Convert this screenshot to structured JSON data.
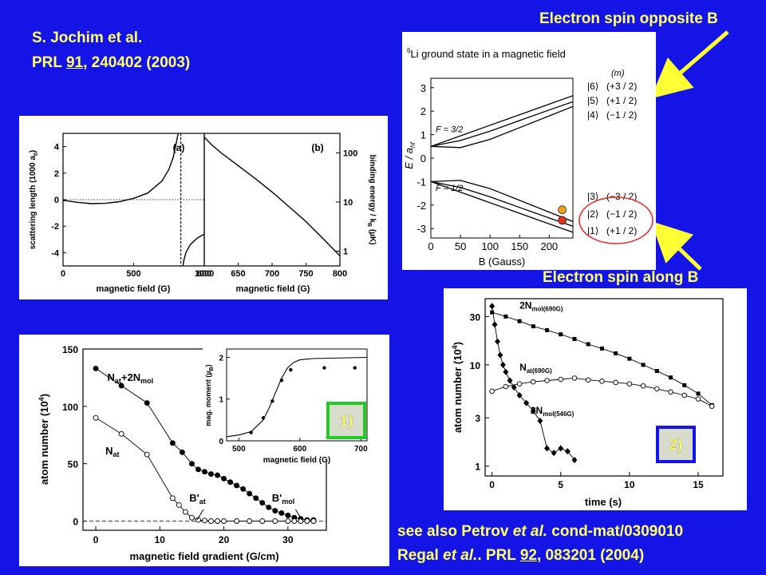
{
  "slide": {
    "citation_top": {
      "authors": "S. Jochim et al.",
      "journal": "PRL",
      "volume": "91",
      "rest": ", 240402 (2003)"
    },
    "label_opposite": "Electron spin opposite B",
    "label_along": "Electron spin  along B",
    "see_also": {
      "prefix": "see also Petrov ",
      "etal": "et al.",
      "suffix": " cond-mat/0309010"
    },
    "regal": {
      "authors": "Regal ",
      "etal": "et al.",
      "journal": ". PRL ",
      "volume": "92",
      "rest": ", 083201 (2004)"
    },
    "box1_label": "1)",
    "box2_label": "2)",
    "colors": {
      "background": "#1414e6",
      "text": "#ffff66",
      "arrow": "#ffff33",
      "box1": "#22cc22",
      "box2": "#1414e6",
      "circle": "#e03030"
    }
  },
  "chart_data": [
    {
      "id": "panel-a",
      "type": "line",
      "panel_label": "(a)",
      "xlabel": "magnetic field (G)",
      "ylabel": "scattering length (1000 a",
      "ylabel_sub": "0",
      "ylabel_close": ")",
      "xlim": [
        0,
        1000
      ],
      "ylim": [
        -5,
        5
      ],
      "xticks": [
        0,
        500,
        1000
      ],
      "yticks": [
        -4,
        -2,
        0,
        2,
        4
      ],
      "resonance_x": 834,
      "series": [
        {
          "x": [
            0,
            100,
            200,
            300,
            400,
            500,
            600,
            700,
            750,
            780,
            800,
            815,
            825
          ],
          "y": [
            -0.05,
            -0.2,
            -0.3,
            -0.28,
            -0.15,
            0.1,
            0.5,
            1.4,
            2.3,
            3.2,
            4.2,
            5.0,
            5.5
          ]
        },
        {
          "x": [
            843,
            855,
            870,
            900,
            950,
            1000
          ],
          "y": [
            -5.5,
            -4.6,
            -4.0,
            -3.4,
            -2.9,
            -2.6
          ]
        }
      ]
    },
    {
      "id": "panel-b",
      "type": "line",
      "panel_label": "(b)",
      "xlabel": "magnetic field (G)",
      "ylabel": "binding energy / k",
      "ylabel_sub": "B",
      "ylabel_close": " (µK)",
      "xlim": [
        600,
        800
      ],
      "ylim_log": [
        0.5,
        250
      ],
      "yscale": "log",
      "xticks": [
        600,
        650,
        700,
        750,
        800
      ],
      "yticks": [
        1,
        10,
        100
      ],
      "series": [
        {
          "x": [
            600,
            610,
            625,
            650,
            675,
            700,
            725,
            750,
            775,
            800
          ],
          "y": [
            210,
            150,
            100,
            55,
            30,
            16,
            8,
            4,
            1.8,
            0.8
          ]
        }
      ]
    },
    {
      "id": "li-levels",
      "type": "line",
      "title_sup": "6",
      "title": "Li ground state in a magnetic field",
      "xlabel": "B (Gauss)",
      "ylabel": "E / a",
      "ylabel_sub": "hf",
      "m_header": "(m)",
      "f_upper": "F = 3/2",
      "f_lower": "F = 1/2",
      "xlim": [
        0,
        240
      ],
      "ylim": [
        -3.4,
        3.4
      ],
      "xticks": [
        0,
        50,
        100,
        150,
        200
      ],
      "yticks": [
        -3,
        -2,
        -1,
        0,
        1,
        2,
        3
      ],
      "state_labels": [
        {
          "ket": "6",
          "m": "(+3 / 2)"
        },
        {
          "ket": "5",
          "m": "(+1 / 2)"
        },
        {
          "ket": "4",
          "m": "(−1 / 2)"
        },
        {
          "ket": "3",
          "m": "(−3 / 2)"
        },
        {
          "ket": "2",
          "m": "(−1 / 2)"
        },
        {
          "ket": "1",
          "m": "(+1 / 2)"
        }
      ],
      "series": [
        {
          "x": [
            0,
            50,
            100,
            150,
            200,
            240
          ],
          "y": [
            0.5,
            0.95,
            1.4,
            1.85,
            2.3,
            2.66
          ]
        },
        {
          "x": [
            0,
            50,
            100,
            150,
            200,
            240
          ],
          "y": [
            0.5,
            0.75,
            1.15,
            1.6,
            2.05,
            2.4
          ]
        },
        {
          "x": [
            0,
            50,
            100,
            150,
            200,
            240
          ],
          "y": [
            0.5,
            0.45,
            0.8,
            1.3,
            1.8,
            2.2
          ]
        },
        {
          "x": [
            0,
            50,
            100,
            150,
            200,
            240
          ],
          "y": [
            -1.0,
            -1.45,
            -1.9,
            -2.35,
            -2.8,
            -3.16
          ]
        },
        {
          "x": [
            0,
            50,
            100,
            150,
            200,
            240
          ],
          "y": [
            -1.0,
            -1.25,
            -1.65,
            -2.1,
            -2.55,
            -2.9
          ]
        },
        {
          "x": [
            0,
            50,
            100,
            150,
            200,
            240
          ],
          "y": [
            -1.0,
            -0.95,
            -1.3,
            -1.8,
            -2.3,
            -2.7
          ]
        }
      ],
      "markers": [
        {
          "x": 222,
          "y": -2.2,
          "color": "#f0a020"
        },
        {
          "x": 222,
          "y": -2.65,
          "color": "#e03020"
        }
      ]
    },
    {
      "id": "atom-number-gradient",
      "type": "scatter",
      "xlabel": "magnetic field gradient (G/cm)",
      "ylabel": "atom number (10",
      "ylabel_sup": "4",
      "ylabel_close": ")",
      "xlim": [
        -2,
        36
      ],
      "ylim": [
        -8,
        150
      ],
      "xticks": [
        0,
        10,
        20,
        30
      ],
      "yticks": [
        0,
        50,
        100,
        150
      ],
      "label_total": "N",
      "label_total_sub": "at",
      "label_total_rest": "+2N",
      "label_total_sub2": "mol",
      "label_at": "N",
      "label_at_sub": "at",
      "label_bat": "B'",
      "label_bat_sub": "at",
      "label_bmol": "B'",
      "label_bmol_sub": "mol",
      "series": [
        {
          "name": "N_at+2N_mol",
          "filled": true,
          "x": [
            0,
            4,
            8,
            12,
            13.5,
            15,
            16,
            17,
            18,
            19,
            20,
            21,
            22,
            23,
            24,
            25,
            26,
            27,
            28,
            29,
            30,
            31,
            32,
            33,
            34
          ],
          "y": [
            133,
            118,
            103,
            68,
            60,
            50,
            45,
            43,
            41,
            40,
            37,
            34,
            31,
            28,
            24,
            20,
            16,
            12,
            9,
            7,
            5,
            3,
            2,
            1,
            1
          ]
        },
        {
          "name": "N_at",
          "filled": false,
          "x": [
            0,
            4,
            8,
            12,
            13,
            14,
            15,
            16,
            17,
            18,
            19,
            20,
            22,
            24,
            26,
            28,
            30,
            31,
            32,
            33,
            34
          ],
          "y": [
            90,
            76,
            58,
            20,
            14,
            8,
            3,
            1,
            0.5,
            0,
            0,
            0,
            0,
            0,
            0,
            0,
            0,
            0,
            0,
            0,
            0
          ]
        }
      ]
    },
    {
      "id": "inset-mag-moment",
      "type": "scatter",
      "xlabel": "magnetic field (G)",
      "ylabel": "mag. moment (µ",
      "ylabel_sub": "B",
      "ylabel_close": ")",
      "xlim": [
        480,
        710
      ],
      "ylim": [
        0,
        2.2
      ],
      "xticks": [
        500,
        600,
        700
      ],
      "yticks": [
        0,
        1,
        2
      ],
      "curve": {
        "x": [
          480,
          500,
          520,
          540,
          550,
          560,
          570,
          580,
          590,
          600,
          620,
          650,
          680,
          710
        ],
        "y": [
          0.1,
          0.14,
          0.22,
          0.5,
          0.8,
          1.15,
          1.5,
          1.75,
          1.88,
          1.94,
          1.97,
          1.98,
          1.99,
          2.0
        ]
      },
      "series": [
        {
          "x": [
            520,
            540,
            555,
            570,
            585,
            640,
            690
          ],
          "y": [
            0.2,
            0.55,
            0.95,
            1.45,
            1.7,
            1.75,
            1.75
          ]
        }
      ]
    },
    {
      "id": "atom-number-time",
      "type": "scatter",
      "xlabel": "time (s)",
      "ylabel": "atom number (10",
      "ylabel_sup": "4",
      "ylabel_close": ")",
      "yscale": "log",
      "xlim": [
        -0.5,
        16.8
      ],
      "ylim_log": [
        0.8,
        45
      ],
      "xticks": [
        0,
        5,
        10,
        15
      ],
      "yticks": [
        1,
        3,
        10,
        30
      ],
      "series": [
        {
          "name": "2N",
          "sub": "mol(690G)",
          "marker": "square-filled",
          "x": [
            0,
            1,
            2,
            3,
            4,
            5,
            6,
            7,
            8,
            9,
            10,
            11,
            12,
            13,
            14,
            15,
            16
          ],
          "y": [
            33,
            30,
            27,
            24,
            22,
            20,
            18,
            16,
            14.5,
            13,
            11.5,
            10,
            8.7,
            7.5,
            6.3,
            5.2,
            4.0
          ]
        },
        {
          "name": "N",
          "sub": "at(690G)",
          "marker": "circle-open",
          "x": [
            0,
            1,
            2,
            3,
            4,
            5,
            6,
            7,
            8,
            9,
            10,
            11,
            12,
            13,
            14,
            15,
            16
          ],
          "y": [
            5.5,
            6.1,
            6.5,
            6.8,
            7.0,
            7.2,
            7.4,
            7.1,
            6.9,
            6.7,
            6.5,
            6.2,
            5.8,
            5.4,
            5.0,
            4.6,
            3.9
          ]
        },
        {
          "name": "2N",
          "sub": "mol(546G)",
          "marker": "diamond-filled",
          "x": [
            0,
            0.2,
            0.4,
            0.6,
            0.8,
            1.0,
            1.3,
            1.6,
            2.0,
            2.5,
            3.0,
            3.5,
            4.0,
            4.5,
            5.0,
            5.5,
            6.0
          ],
          "y": [
            38,
            25,
            17,
            12.5,
            10,
            8.5,
            7,
            6,
            5,
            4.2,
            3.5,
            2.8,
            1.5,
            1.35,
            1.5,
            1.4,
            1.15
          ]
        }
      ]
    }
  ]
}
